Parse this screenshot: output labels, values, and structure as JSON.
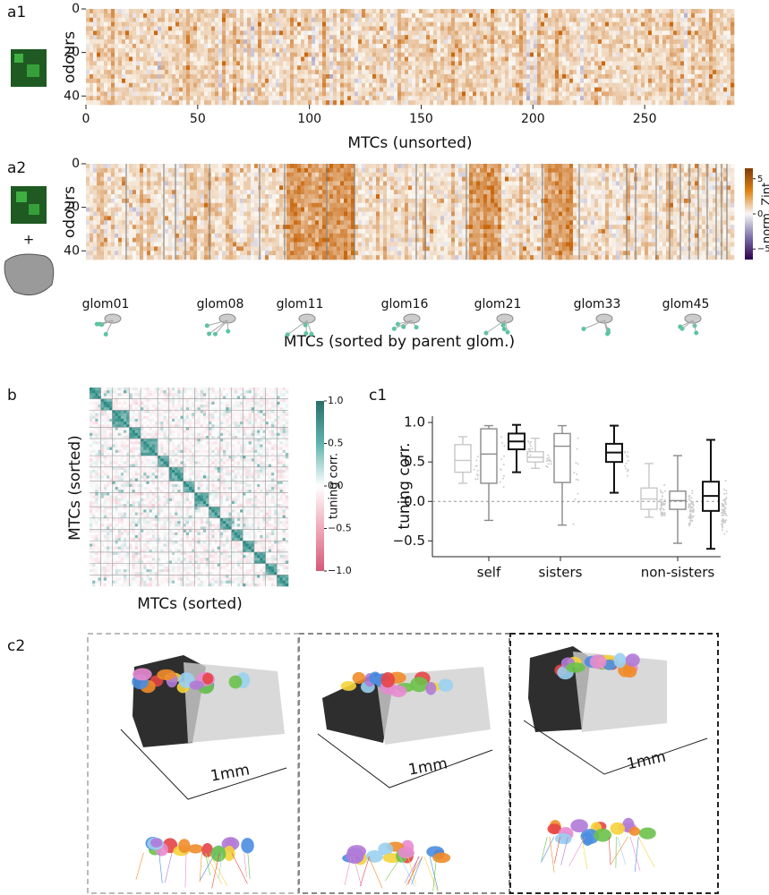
{
  "a1": {
    "label": "a1",
    "ylabel": "odours",
    "xlabel": "MTCs (unsorted)",
    "xlim": [
      0,
      290
    ],
    "xticks": [
      0,
      50,
      100,
      150,
      200,
      250
    ],
    "ylim": [
      0,
      44
    ],
    "yticks": [
      0,
      20,
      40
    ]
  },
  "a2": {
    "label": "a2",
    "plus": "+",
    "ylabel": "odours",
    "xlabel": "MTCs (sorted by parent glom.)",
    "ylim": [
      0,
      44
    ],
    "yticks": [
      0,
      20,
      40
    ],
    "glomeruli": [
      "glom01",
      "glom08",
      "glom11",
      "glom16",
      "glom21",
      "glom33",
      "glom45"
    ],
    "colorbar": {
      "label": "norm. Zint",
      "lim": [
        -6.5,
        6.5
      ],
      "ticks": [
        5,
        0,
        {
          "value": -5,
          "label": "−5"
        }
      ]
    }
  },
  "b": {
    "label": "b",
    "xlabel": "MTCs (sorted)",
    "ylabel": "MTCs (sorted)",
    "colorbar": {
      "label": "tuning corr.",
      "lim": [
        -1,
        1
      ],
      "ticks": [
        {
          "value": 1,
          "label": "1.0"
        },
        {
          "value": 0.5,
          "label": "0.5"
        },
        {
          "value": 0,
          "label": "0.0"
        },
        {
          "value": -0.5,
          "label": "−0.5"
        },
        {
          "value": -1,
          "label": "−1.0"
        }
      ]
    }
  },
  "c1": {
    "label": "c1",
    "type": "box",
    "ylabel": "tuning corr.",
    "ylim": [
      -0.7,
      1.08
    ],
    "yticks": [
      {
        "value": -0.5,
        "label": "−0.5"
      },
      {
        "value": 0,
        "label": "0.0"
      },
      {
        "value": 0.5,
        "label": "0.5"
      },
      {
        "value": 1,
        "label": "1.0"
      }
    ],
    "colors": [
      "#c8c8c8",
      "#8a8a8a",
      "#111111"
    ],
    "groups": [
      {
        "category": "self",
        "boxes": [
          {
            "low": 0.23,
            "q1": 0.37,
            "median": 0.52,
            "q3": 0.72,
            "high": 0.82
          },
          {
            "low": -0.24,
            "q1": 0.23,
            "median": 0.6,
            "q3": 0.92,
            "high": 0.96
          },
          {
            "low": 0.37,
            "q1": 0.66,
            "median": 0.76,
            "q3": 0.86,
            "high": 0.97
          }
        ]
      },
      {
        "category": "sisters",
        "boxes": [
          {
            "low": 0.42,
            "q1": 0.5,
            "median": 0.56,
            "q3": 0.63,
            "high": 0.8
          },
          {
            "low": -0.3,
            "q1": 0.24,
            "median": 0.7,
            "q3": 0.86,
            "high": 0.96
          },
          {
            "low": 0.11,
            "q1": 0.5,
            "median": 0.62,
            "q3": 0.73,
            "high": 0.96
          }
        ]
      },
      {
        "category": "non-sisters",
        "boxes": [
          {
            "low": -0.2,
            "q1": -0.1,
            "median": 0.03,
            "q3": 0.17,
            "high": 0.48
          },
          {
            "low": -0.53,
            "q1": -0.1,
            "median": 0.01,
            "q3": 0.13,
            "high": 0.58
          },
          {
            "low": -0.6,
            "q1": -0.12,
            "median": 0.07,
            "q3": 0.25,
            "high": 0.78
          }
        ]
      }
    ]
  },
  "c2": {
    "label": "c2",
    "scale_labels": [
      "1mm",
      "1mm",
      "1mm"
    ]
  }
}
